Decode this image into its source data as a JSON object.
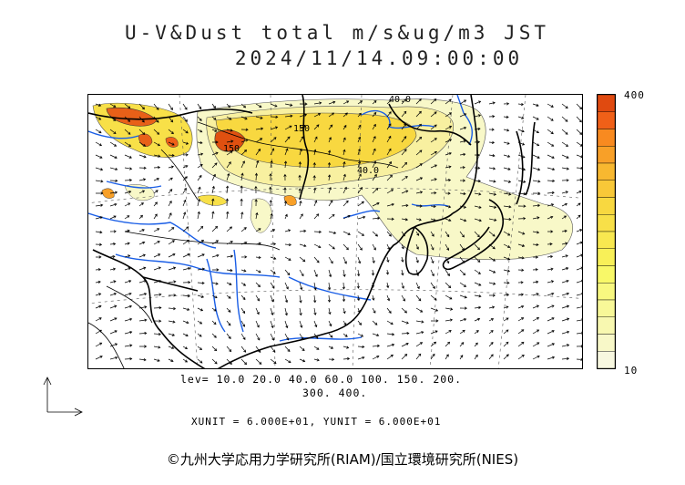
{
  "title_line1": "U-V&Dust total m/s&ug/m3 JST",
  "title_line2": "2024/11/14.09:00:00",
  "colorbar": {
    "max_label": "400",
    "min_label": "10",
    "colors": [
      "#e04a10",
      "#f06018",
      "#f88a20",
      "#f8a028",
      "#f8b830",
      "#f8c838",
      "#f8d840",
      "#f8e048",
      "#f8e850",
      "#f8f058",
      "#f8f868",
      "#f8f880",
      "#f8f898",
      "#f8f8b0",
      "#f8f8c8",
      "#f8f8e0"
    ]
  },
  "contour_labels": [
    "40.0",
    "150",
    "40.0",
    "150"
  ],
  "levels_line1": "lev= 10.0 20.0 40.0 60.0 100. 150. 200.",
  "levels_line2": "300. 400.",
  "unit_text": "XUNIT = 6.000E+01, YUNIT = 6.000E+01",
  "copyright": "©九州大学応用力学研究所(RIAM)/国立環境研究所(NIES)",
  "colors": {
    "coast": "#000000",
    "river": "#1a5ee6",
    "grid": "#555555"
  }
}
